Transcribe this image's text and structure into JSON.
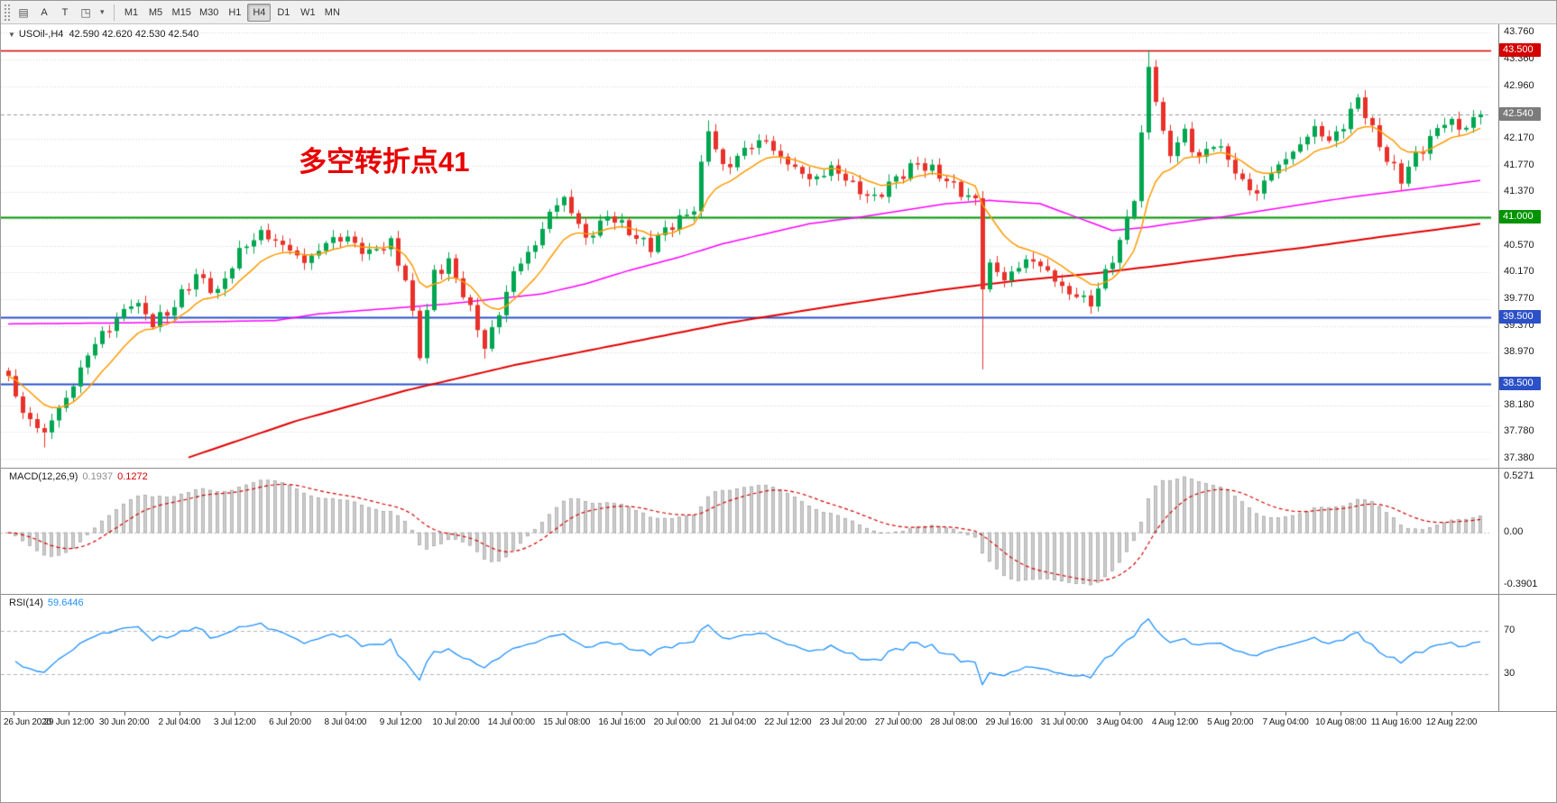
{
  "toolbar": {
    "tools": [
      {
        "name": "charts-grid-icon",
        "glyph": "▤"
      },
      {
        "name": "text-annotation-tool",
        "glyph": "A"
      },
      {
        "name": "text-box-tool",
        "glyph": "T"
      },
      {
        "name": "shapes-tool",
        "glyph": "◳"
      },
      {
        "name": "shapes-dropdown-caret-icon",
        "glyph": "▾"
      }
    ],
    "timeframes": [
      "M1",
      "M5",
      "M15",
      "M30",
      "H1",
      "H4",
      "D1",
      "W1",
      "MN"
    ],
    "active_timeframe": "H4"
  },
  "chart": {
    "collapse_icon": "▼",
    "title": "USOil-,H4",
    "ohlc": "42.590 42.620 42.530 42.540",
    "annotation": "多空转折点41",
    "price_ticks": [
      "43.760",
      "43.360",
      "42.960",
      "42.170",
      "41.770",
      "41.370",
      "40.970",
      "40.570",
      "40.170",
      "39.770",
      "39.370",
      "38.970",
      "38.180",
      "37.780",
      "37.380"
    ],
    "level_badges": [
      {
        "label": "43.500",
        "color": "#d40000"
      },
      {
        "label": "42.540",
        "color": "#7b7b7b"
      },
      {
        "label": "41.000",
        "color": "#009400"
      },
      {
        "label": "39.500",
        "color": "#2b50c8"
      },
      {
        "label": "38.500",
        "color": "#2b50c8"
      }
    ]
  },
  "macd_panel": {
    "label": "MACD(12,26,9)",
    "value_main": "0.1937",
    "value_signal": "0.1272",
    "axis_labels": [
      "0.5271",
      "0.00",
      "-0.3901"
    ]
  },
  "rsi_panel": {
    "label": "RSI(14)",
    "value": "59.6446",
    "axis_labels": [
      "70",
      "30"
    ]
  },
  "time_axis": {
    "labels": [
      "26 Jun 2020",
      "29 Jun 12:00",
      "30 Jun 20:00",
      "2 Jul 04:00",
      "3 Jul 12:00",
      "6 Jul 20:00",
      "8 Jul 04:00",
      "9 Jul 12:00",
      "10 Jul 20:00",
      "14 Jul 00:00",
      "15 Jul 08:00",
      "16 Jul 16:00",
      "20 Jul 00:00",
      "21 Jul 04:00",
      "22 Jul 12:00",
      "23 Jul 20:00",
      "27 Jul 00:00",
      "28 Jul 08:00",
      "29 Jul 16:00",
      "31 Jul 00:00",
      "3 Aug 04:00",
      "4 Aug 12:00",
      "5 Aug 20:00",
      "7 Aug 04:00",
      "10 Aug 08:00",
      "11 Aug 16:00",
      "12 Aug 22:00"
    ]
  },
  "chart_data": {
    "type": "candlestick",
    "symbol": "USOil-",
    "timeframe": "H4",
    "bars": 205,
    "last_close": 42.54,
    "price_range": [
      37.3,
      43.86
    ],
    "current_price": 42.54,
    "up_color": "#00a650",
    "down_color": "#e8312a",
    "levels": [
      {
        "price": 43.5,
        "color": "#d40000",
        "width": 1.5
      },
      {
        "price": 41.0,
        "color": "#009400",
        "width": 2
      },
      {
        "price": 39.5,
        "color": "#2b50c8",
        "width": 2
      },
      {
        "price": 38.5,
        "color": "#2b50c8",
        "width": 2
      }
    ],
    "close_anchors": [
      [
        0,
        38.55
      ],
      [
        2,
        38.1
      ],
      [
        5,
        37.75
      ],
      [
        8,
        38.3
      ],
      [
        11,
        38.95
      ],
      [
        14,
        39.35
      ],
      [
        17,
        39.75
      ],
      [
        20,
        39.4
      ],
      [
        23,
        39.7
      ],
      [
        26,
        40.1
      ],
      [
        29,
        39.9
      ],
      [
        32,
        40.45
      ],
      [
        35,
        40.8
      ],
      [
        38,
        40.55
      ],
      [
        41,
        40.35
      ],
      [
        44,
        40.6
      ],
      [
        47,
        40.7
      ],
      [
        50,
        40.45
      ],
      [
        53,
        40.6
      ],
      [
        55,
        40.1
      ],
      [
        57,
        38.95
      ],
      [
        59,
        40.15
      ],
      [
        61,
        40.35
      ],
      [
        63,
        39.85
      ],
      [
        66,
        39.05
      ],
      [
        68,
        39.6
      ],
      [
        70,
        40.15
      ],
      [
        73,
        40.6
      ],
      [
        75,
        41.1
      ],
      [
        77,
        41.25
      ],
      [
        80,
        40.7
      ],
      [
        83,
        41.0
      ],
      [
        86,
        40.8
      ],
      [
        89,
        40.55
      ],
      [
        92,
        40.9
      ],
      [
        95,
        41.15
      ],
      [
        97,
        42.3
      ],
      [
        99,
        41.75
      ],
      [
        102,
        42.0
      ],
      [
        105,
        42.15
      ],
      [
        108,
        41.8
      ],
      [
        111,
        41.55
      ],
      [
        114,
        41.75
      ],
      [
        117,
        41.45
      ],
      [
        120,
        41.3
      ],
      [
        123,
        41.55
      ],
      [
        126,
        41.85
      ],
      [
        129,
        41.6
      ],
      [
        132,
        41.4
      ],
      [
        134,
        41.25
      ],
      [
        135,
        39.95
      ],
      [
        136,
        40.25
      ],
      [
        138,
        40.1
      ],
      [
        141,
        40.35
      ],
      [
        144,
        40.2
      ],
      [
        147,
        39.85
      ],
      [
        150,
        39.7
      ],
      [
        152,
        40.2
      ],
      [
        154,
        40.6
      ],
      [
        156,
        41.3
      ],
      [
        157,
        42.2
      ],
      [
        158,
        43.3
      ],
      [
        159,
        42.8
      ],
      [
        160,
        42.2
      ],
      [
        161,
        41.95
      ],
      [
        163,
        42.25
      ],
      [
        165,
        41.9
      ],
      [
        167,
        42.1
      ],
      [
        169,
        41.85
      ],
      [
        171,
        41.55
      ],
      [
        173,
        41.35
      ],
      [
        175,
        41.65
      ],
      [
        177,
        41.9
      ],
      [
        179,
        42.1
      ],
      [
        181,
        42.3
      ],
      [
        183,
        42.15
      ],
      [
        185,
        42.4
      ],
      [
        187,
        42.75
      ],
      [
        189,
        42.3
      ],
      [
        191,
        41.9
      ],
      [
        193,
        41.55
      ],
      [
        195,
        41.9
      ],
      [
        197,
        42.2
      ],
      [
        199,
        42.45
      ],
      [
        201,
        42.3
      ],
      [
        204,
        42.54
      ]
    ],
    "specials": {
      "5": {
        "low": 37.55
      },
      "57": {
        "low": 38.85
      },
      "66": {
        "low": 38.88
      },
      "97": {
        "high": 42.45
      },
      "135": {
        "low": 38.72
      },
      "158": {
        "high": 43.5
      }
    },
    "ma_fast": {
      "color": "#ff9900",
      "period": 10
    },
    "ma_mid": {
      "color": "#ff00ff",
      "anchors": [
        [
          0,
          39.4
        ],
        [
          20,
          39.42
        ],
        [
          37,
          39.45
        ],
        [
          43,
          39.55
        ],
        [
          55,
          39.65
        ],
        [
          61,
          39.7
        ],
        [
          74,
          39.85
        ],
        [
          80,
          40.0
        ],
        [
          86,
          40.2
        ],
        [
          93,
          40.4
        ],
        [
          99,
          40.6
        ],
        [
          105,
          40.75
        ],
        [
          111,
          40.9
        ],
        [
          118,
          41.0
        ],
        [
          124,
          41.1
        ],
        [
          130,
          41.2
        ],
        [
          136,
          41.25
        ],
        [
          143,
          41.2
        ],
        [
          148,
          41.0
        ],
        [
          153,
          40.8
        ],
        [
          158,
          40.85
        ],
        [
          161,
          40.9
        ],
        [
          168,
          41.0
        ],
        [
          174,
          41.1
        ],
        [
          180,
          41.2
        ],
        [
          186,
          41.3
        ],
        [
          195,
          41.42
        ],
        [
          204,
          41.55
        ]
      ]
    },
    "ma_slow": {
      "color": "#e00000",
      "anchors": [
        [
          25,
          37.4
        ],
        [
          40,
          37.95
        ],
        [
          55,
          38.4
        ],
        [
          70,
          38.78
        ],
        [
          85,
          39.1
        ],
        [
          100,
          39.42
        ],
        [
          115,
          39.68
        ],
        [
          130,
          39.92
        ],
        [
          140,
          40.05
        ],
        [
          150,
          40.15
        ],
        [
          160,
          40.28
        ],
        [
          170,
          40.42
        ],
        [
          180,
          40.55
        ],
        [
          190,
          40.7
        ],
        [
          204,
          40.9
        ]
      ]
    },
    "macd": {
      "fast": 12,
      "slow": 26,
      "signal": 9,
      "current_main": 0.1937,
      "current_signal": 0.1272
    },
    "rsi": {
      "period": 14,
      "levels": [
        70,
        30
      ],
      "current": 59.6446
    }
  }
}
